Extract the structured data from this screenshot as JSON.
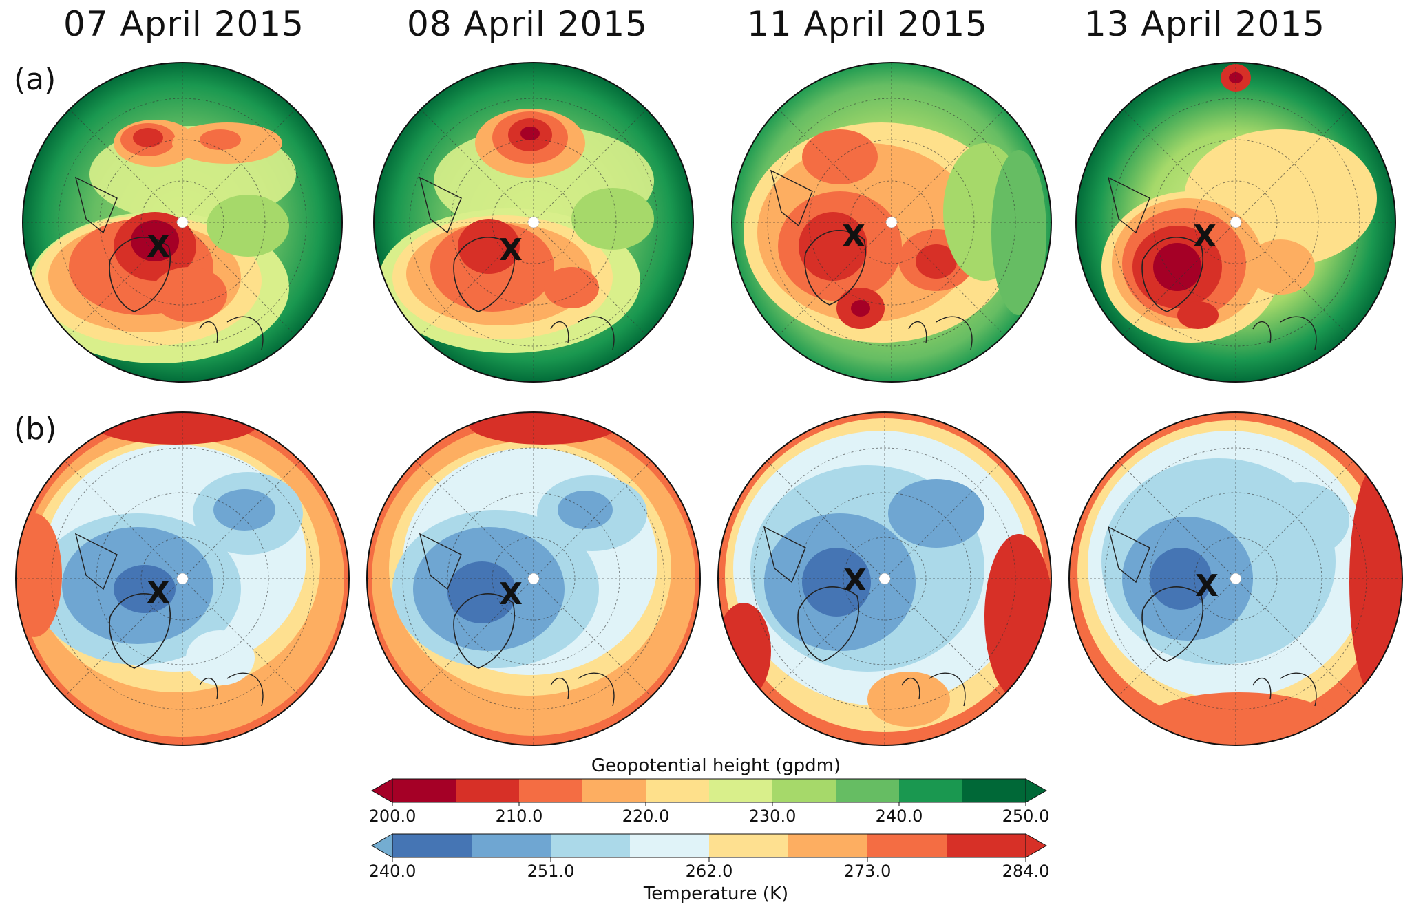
{
  "panel_dates": [
    "07 April 2015",
    "08 April 2015",
    "11 April 2015",
    "13 April 2015"
  ],
  "row_labels": [
    "(a)",
    "(b)"
  ],
  "marker_symbol": "X",
  "colorbars": [
    {
      "title": "Geopotential height (gpdm)",
      "ticks": [
        "200.0",
        "210.0",
        "220.0",
        "230.0",
        "240.0",
        "250.0"
      ],
      "colors": [
        "#a50026",
        "#d73027",
        "#f46d43",
        "#fdae61",
        "#fee08b",
        "#d9ef8b",
        "#a6d96a",
        "#66bd63",
        "#1a9850",
        "#006837"
      ],
      "min_arrow_color": "#a50026",
      "max_arrow_color": "#006837"
    },
    {
      "title": "Temperature (K)",
      "ticks": [
        "240.0",
        "251.0",
        "262.0",
        "273.0",
        "284.0"
      ],
      "colors": [
        "#4575b4",
        "#6fa6d2",
        "#abd9e9",
        "#e0f3f8",
        "#fee090",
        "#fdae61",
        "#f46d43",
        "#d73027"
      ],
      "min_arrow_color": "#74add1",
      "max_arrow_color": "#d73027"
    }
  ]
}
